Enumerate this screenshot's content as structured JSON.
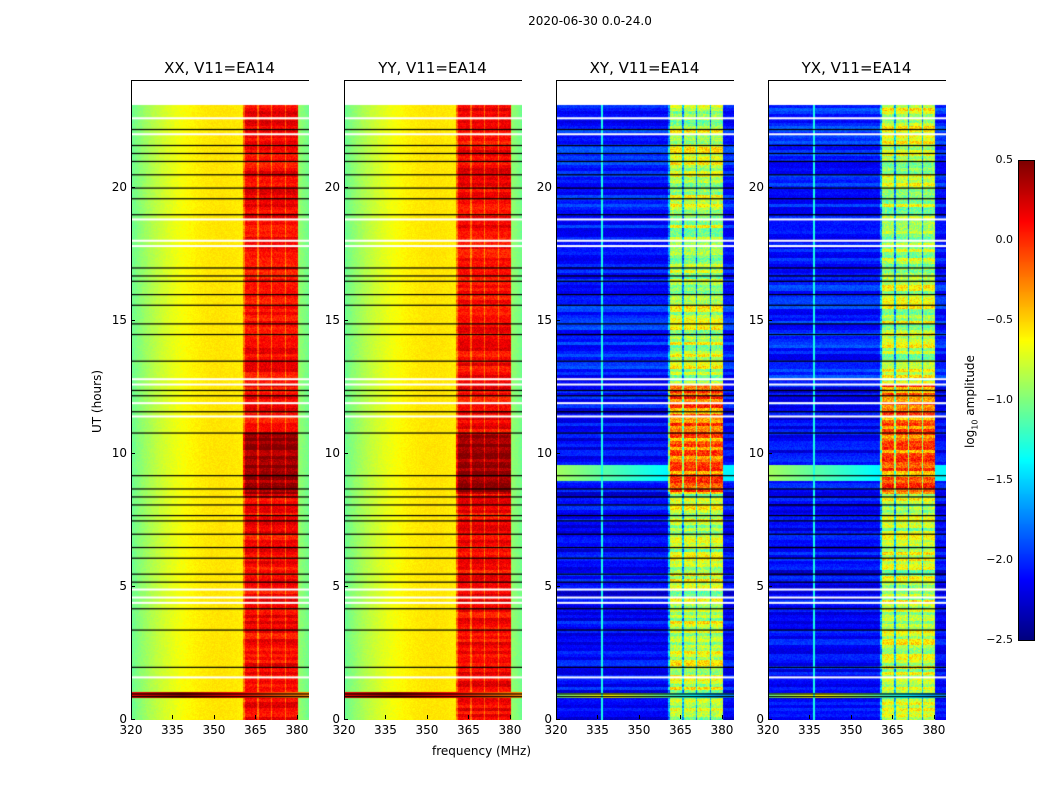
{
  "suptitle": "2020-06-30 0.0-24.0",
  "chart_data": {
    "type": "heatmap",
    "title": "2020-06-30 0.0-24.0",
    "xlabel": "frequency (MHz)",
    "ylabel": "UT (hours)",
    "xlim": [
      320,
      384
    ],
    "ylim": [
      0,
      24
    ],
    "data_ut_range": [
      0,
      23.1
    ],
    "xticks": [
      "320",
      "335",
      "350",
      "365",
      "380"
    ],
    "yticks": [
      "0",
      "5",
      "10",
      "15",
      "20"
    ],
    "panels": [
      {
        "title": "XX, V11=EA14",
        "kind": "parallel"
      },
      {
        "title": "YY, V11=EA14",
        "kind": "parallel"
      },
      {
        "title": "XY, V11=EA14",
        "kind": "cross"
      },
      {
        "title": "YX, V11=EA14",
        "kind": "cross"
      }
    ],
    "colorbar": {
      "label": "log10 amplitude",
      "label_base": "log",
      "label_sub": "10",
      "label_rest": " amplitude",
      "range": [
        -2.5,
        0.5
      ],
      "colormap": "jet",
      "ticks": [
        "0.5",
        "0.0",
        "−0.5",
        "−1.0",
        "−1.5",
        "−2.0",
        "−2.5"
      ]
    },
    "strong_rfi_band_mhz": [
      360,
      380
    ],
    "flagged_rows_ut_white": [
      1.6,
      4.4,
      4.6,
      4.9,
      11.4,
      11.9,
      12.6,
      12.8,
      17.8,
      18.0,
      18.8,
      22.0,
      22.6
    ],
    "flagged_rows_ut_black": [
      0.9,
      1.0,
      2.0,
      3.4,
      4.2,
      5.2,
      5.5,
      6.1,
      6.5,
      7.0,
      7.5,
      7.7,
      8.1,
      8.4,
      8.7,
      9.2,
      10.8,
      11.6,
      12.2,
      12.4,
      13.5,
      14.5,
      14.9,
      15.6,
      16.0,
      16.5,
      16.7,
      17.0,
      19.0,
      19.6,
      20.0,
      20.5,
      21.0,
      21.3,
      21.6,
      22.2
    ]
  }
}
